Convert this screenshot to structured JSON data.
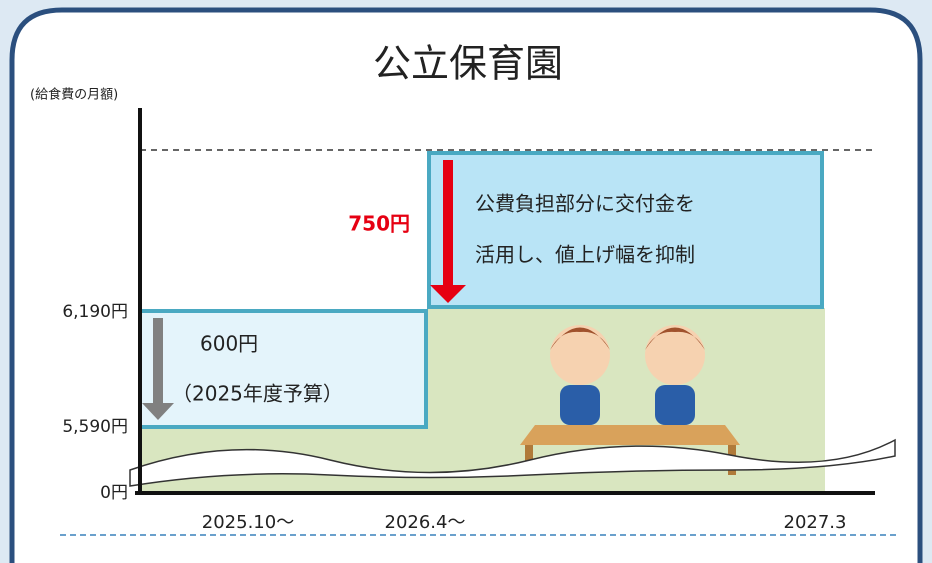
{
  "title": "公立保育園",
  "y_axis_label": "(給食費の月額)",
  "y_labels": [
    "6,190円",
    "5,590円",
    "0円"
  ],
  "x_labels": [
    "2025.10～",
    "2026.4～",
    "2027.3"
  ],
  "reduction_label": "750円",
  "new_box": {
    "lines": [
      "公費負担部分に交付金を",
      "活用し、値上げ幅を抑制"
    ]
  },
  "old_box": {
    "amount": "600円",
    "note": "（2025年度予算）"
  }
}
